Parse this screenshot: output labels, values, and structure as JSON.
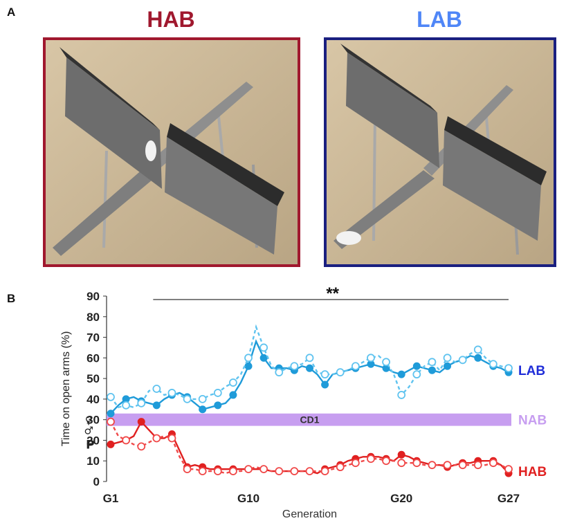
{
  "panel_a": {
    "letter": "A",
    "left_title": "HAB",
    "right_title": "LAB",
    "left_color": "#a0182e",
    "right_color": "#4f86f7",
    "left_frame_color": "#a0182e",
    "right_frame_color": "#1a1f80"
  },
  "panel_b": {
    "letter": "B"
  },
  "chart_data": {
    "type": "line",
    "xlabel": "Generation",
    "ylabel": "Time on open arms (%)",
    "ylim": [
      0,
      90
    ],
    "yticks": [
      0,
      10,
      20,
      30,
      40,
      50,
      60,
      70,
      80,
      90
    ],
    "xlim": [
      1,
      27
    ],
    "xtick_labels": [
      {
        "x": 1,
        "label": "G1"
      },
      {
        "x": 10,
        "label": "G10"
      },
      {
        "x": 20,
        "label": "G20"
      },
      {
        "x": 27,
        "label": "G27"
      }
    ],
    "significance": {
      "label": "**",
      "x_start": 4,
      "x_end": 27
    },
    "band": {
      "label": "CD1",
      "y_low": 27,
      "y_high": 33,
      "color": "#c79ef0"
    },
    "annotations": [
      {
        "text": "P",
        "x": 0.2,
        "y": 18
      },
      {
        "text": "♀",
        "x": 0.1,
        "y": 30
      },
      {
        "text": "♂",
        "x": 0.1,
        "y": 25
      }
    ],
    "series": [
      {
        "name": "LAB",
        "sex": "male",
        "style": "solid",
        "marker": "filled",
        "color": "#1f9bd9",
        "x": [
          1,
          1.5,
          2,
          2.5,
          3,
          3.5,
          4,
          4.5,
          5,
          5.5,
          6,
          6.5,
          7,
          7.5,
          8,
          8.5,
          9,
          9.5,
          10,
          10.5,
          11,
          11.5,
          12,
          12.5,
          13,
          13.5,
          14,
          14.5,
          15,
          15.5,
          16,
          16.5,
          17,
          17.5,
          18,
          18.5,
          19,
          19.5,
          20,
          20.5,
          21,
          21.5,
          22,
          22.5,
          23,
          23.5,
          24,
          24.5,
          25,
          25.5,
          26,
          26.5,
          27
        ],
        "y": [
          33,
          37,
          40,
          41,
          39,
          38,
          37,
          40,
          42,
          43,
          41,
          38,
          35,
          36,
          37,
          38,
          42,
          48,
          56,
          68,
          60,
          55,
          55,
          55,
          54,
          56,
          55,
          52,
          47,
          52,
          53,
          54,
          55,
          56,
          57,
          56,
          55,
          53,
          52,
          54,
          56,
          55,
          54,
          53,
          56,
          58,
          59,
          61,
          60,
          58,
          56,
          55,
          53
        ]
      },
      {
        "name": "LAB",
        "sex": "female",
        "style": "dashed",
        "marker": "open",
        "color": "#5fc3ef",
        "x": [
          1,
          1.5,
          2,
          2.5,
          3,
          3.5,
          4,
          4.5,
          5,
          5.5,
          6,
          6.5,
          7,
          7.5,
          8,
          8.5,
          9,
          9.5,
          10,
          10.5,
          11,
          11.5,
          12,
          12.5,
          13,
          13.5,
          14,
          14.5,
          15,
          15.5,
          16,
          16.5,
          17,
          17.5,
          18,
          18.5,
          19,
          19.5,
          20,
          20.5,
          21,
          21.5,
          22,
          22.5,
          23,
          23.5,
          24,
          24.5,
          25,
          25.5,
          26,
          26.5,
          27
        ],
        "y": [
          41,
          36,
          37,
          36,
          38,
          44,
          45,
          42,
          43,
          42,
          40,
          40,
          40,
          42,
          43,
          46,
          48,
          52,
          60,
          75,
          65,
          56,
          53,
          55,
          56,
          57,
          60,
          53,
          52,
          52,
          53,
          54,
          56,
          58,
          60,
          61,
          58,
          52,
          42,
          46,
          52,
          56,
          58,
          54,
          60,
          58,
          59,
          62,
          64,
          60,
          57,
          56,
          55
        ]
      },
      {
        "name": "HAB",
        "sex": "male",
        "style": "solid",
        "marker": "filled",
        "color": "#e02020",
        "x": [
          1,
          1.5,
          2,
          2.5,
          3,
          3.5,
          4,
          4.5,
          5,
          5.5,
          6,
          6.5,
          7,
          7.5,
          8,
          8.5,
          9,
          9.5,
          10,
          10.5,
          11,
          11.5,
          12,
          12.5,
          13,
          13.5,
          14,
          14.5,
          15,
          15.5,
          16,
          16.5,
          17,
          17.5,
          18,
          18.5,
          19,
          19.5,
          20,
          20.5,
          21,
          21.5,
          22,
          22.5,
          23,
          23.5,
          24,
          24.5,
          25,
          25.5,
          26,
          26.5,
          27
        ],
        "y": [
          18,
          19,
          20,
          22,
          29,
          25,
          21,
          21,
          23,
          15,
          7,
          8,
          7,
          6,
          6,
          6,
          6,
          6,
          6,
          6,
          6,
          5,
          5,
          5,
          5,
          5,
          5,
          4,
          6,
          7,
          8,
          10,
          11,
          12,
          12,
          12,
          11,
          10,
          13,
          12,
          10,
          9,
          8,
          8,
          7,
          8,
          9,
          9,
          10,
          10,
          10,
          8,
          4
        ]
      },
      {
        "name": "HAB",
        "sex": "female",
        "style": "dashed",
        "marker": "open",
        "color": "#f04848",
        "x": [
          1,
          1.5,
          2,
          2.5,
          3,
          3.5,
          4,
          4.5,
          5,
          5.5,
          6,
          6.5,
          7,
          7.5,
          8,
          8.5,
          9,
          9.5,
          10,
          10.5,
          11,
          11.5,
          12,
          12.5,
          13,
          13.5,
          14,
          14.5,
          15,
          15.5,
          16,
          16.5,
          17,
          17.5,
          18,
          18.5,
          19,
          19.5,
          20,
          20.5,
          21,
          21.5,
          22,
          22.5,
          23,
          23.5,
          24,
          24.5,
          25,
          25.5,
          26,
          26.5,
          27
        ],
        "y": [
          29,
          22,
          20,
          18,
          17,
          19,
          21,
          22,
          21,
          12,
          6,
          6,
          5,
          5,
          5,
          4,
          5,
          5,
          6,
          7,
          6,
          5,
          5,
          5,
          5,
          5,
          5,
          5,
          5,
          6,
          7,
          8,
          9,
          10,
          11,
          11,
          10,
          10,
          9,
          9,
          9,
          8,
          8,
          8,
          8,
          8,
          8,
          8,
          8,
          8,
          9,
          8,
          6
        ]
      }
    ],
    "right_labels": [
      {
        "text": "LAB",
        "y": 54,
        "color": "#1f2dd8"
      },
      {
        "text": "NAB",
        "y": 30,
        "color": "#c79ef0"
      },
      {
        "text": "HAB",
        "y": 5,
        "color": "#e02020"
      }
    ]
  }
}
